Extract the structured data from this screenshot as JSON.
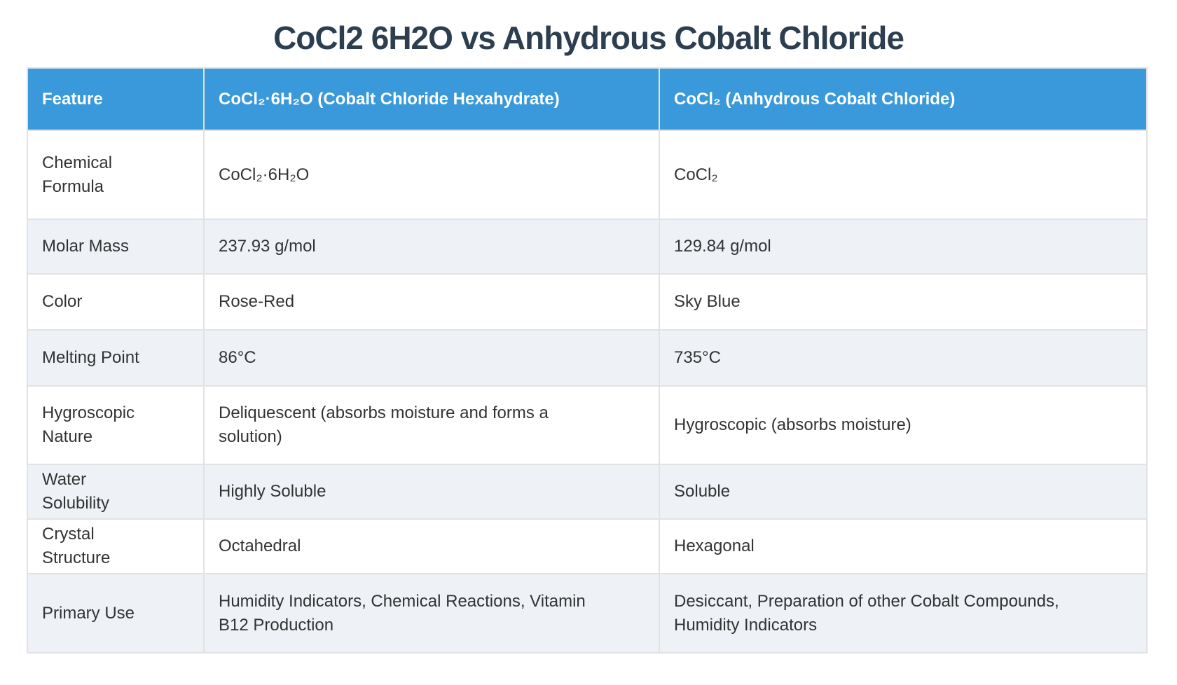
{
  "page": {
    "title": "CoCl2 6H2O vs Anhydrous Cobalt Chloride"
  },
  "colors": {
    "header_bg": "#3a99da",
    "header_text": "#ffffff",
    "row_bg": "#ffffff",
    "row_alt_bg": "#eef1f6",
    "grid_line": "#e2e2e2",
    "title_text": "#2c3e50",
    "body_text": "#333333"
  },
  "table": {
    "columns": [
      "Feature",
      "CoCl₂·6H₂O (Cobalt Chloride Hexahydrate)",
      "CoCl₂ (Anhydrous Cobalt Chloride)"
    ],
    "rows": [
      {
        "feature": "Chemical Formula",
        "hexahydrate": "CoCl₂·6H₂O",
        "anhydrous": "CoCl₂"
      },
      {
        "feature": "Molar Mass",
        "hexahydrate": "237.93 g/mol",
        "anhydrous": "129.84 g/mol"
      },
      {
        "feature": "Color",
        "hexahydrate": "Rose-Red",
        "anhydrous": "Sky Blue"
      },
      {
        "feature": "Melting Point",
        "hexahydrate": "86°C",
        "anhydrous": "735°C"
      },
      {
        "feature": "Hygroscopic Nature",
        "hexahydrate": "Deliquescent (absorbs moisture and forms a solution)",
        "anhydrous": "Hygroscopic (absorbs moisture)"
      },
      {
        "feature": "Water Solubility",
        "hexahydrate": "Highly Soluble",
        "anhydrous": "Soluble"
      },
      {
        "feature": "Crystal Structure",
        "hexahydrate": "Octahedral",
        "anhydrous": "Hexagonal"
      },
      {
        "feature": "Primary Use",
        "hexahydrate": "Humidity Indicators, Chemical Reactions, Vitamin B12 Production",
        "anhydrous": "Desiccant, Preparation of other Cobalt Compounds, Humidity Indicators"
      }
    ]
  }
}
